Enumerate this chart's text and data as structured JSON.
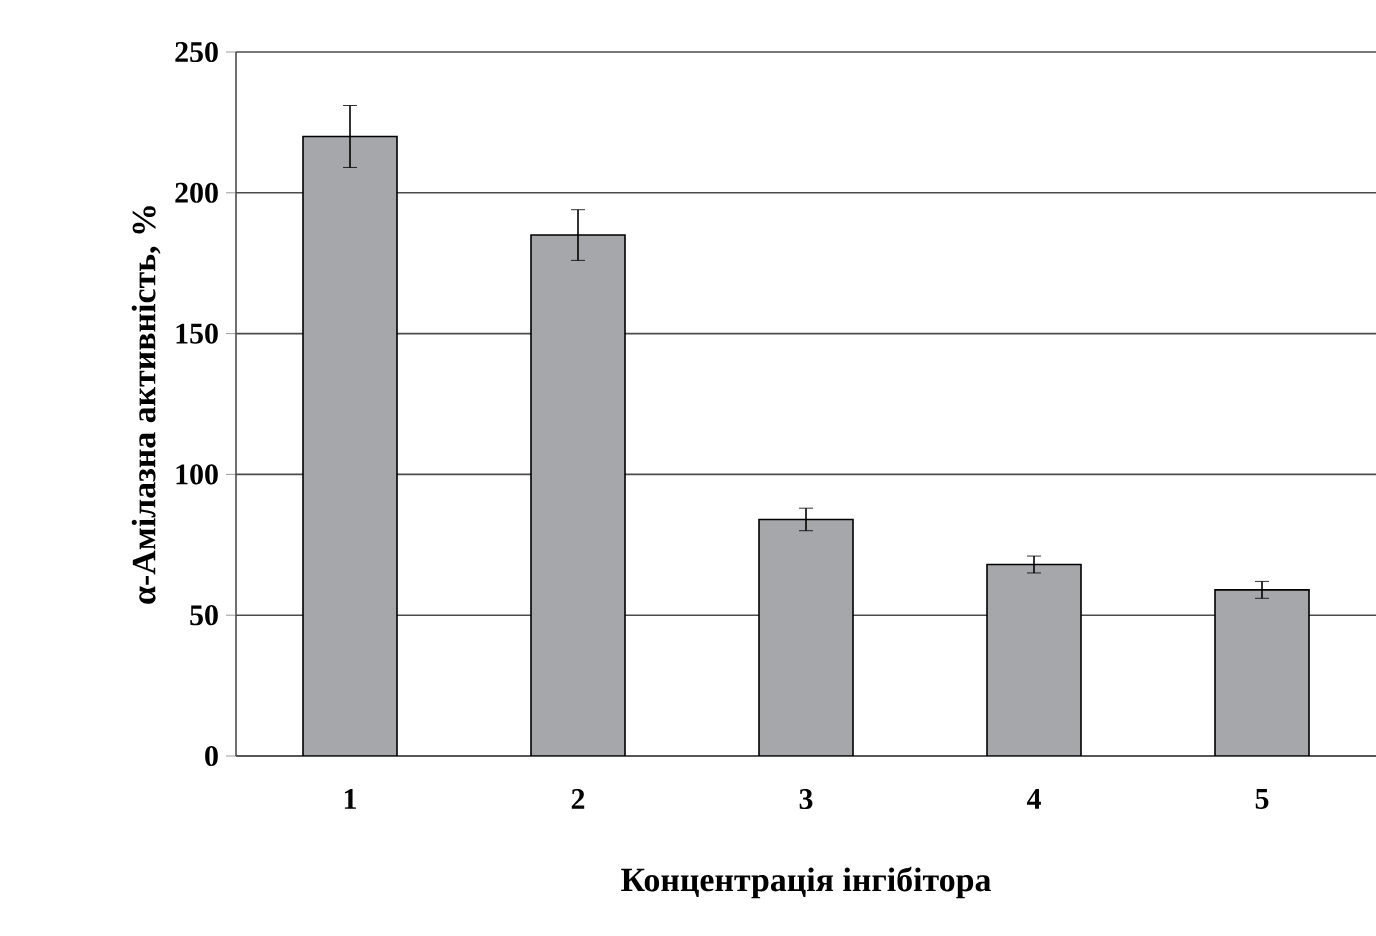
{
  "chart_data": {
    "type": "bar",
    "xlabel": "Концентрація інгібітора",
    "ylabel": "α-Амілазна активність, %",
    "categories": [
      "1",
      "2",
      "3",
      "4",
      "5"
    ],
    "values": [
      220,
      185,
      84,
      68,
      59
    ],
    "errors": [
      11,
      9,
      4,
      3,
      3
    ],
    "color": "#a6a7ab",
    "ylim": [
      0,
      250
    ],
    "yticks": [
      0,
      50,
      100,
      150,
      200,
      250
    ],
    "grid": "y"
  }
}
